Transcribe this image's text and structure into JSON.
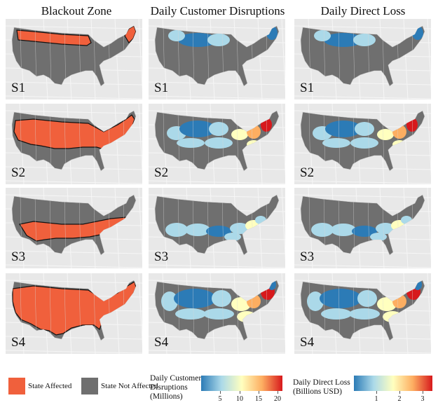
{
  "columns": [
    "Blackout Zone",
    "Daily Customer Disruptions",
    "Daily Direct Loss"
  ],
  "scenarios": [
    "S1",
    "S2",
    "S3",
    "S4"
  ],
  "legend": {
    "state_affected": "State Affected",
    "state_not_affected": "State Not Affected",
    "disruptions_title": "Daily Customer\nDisruptions\n(Millions)",
    "disruptions_ticks": [
      "5",
      "10",
      "15",
      "20"
    ],
    "loss_title": "Daily Direct Loss\n(Billions USD)",
    "loss_ticks": [
      "1",
      "2",
      "3"
    ]
  },
  "colors": {
    "affected": "#f0603c",
    "not_affected": "#6f6f6f",
    "background": "#e8e8e8",
    "scale": [
      "#2c7bb6",
      "#abd9e9",
      "#ffffbf",
      "#fdae61",
      "#d7191c"
    ]
  }
}
